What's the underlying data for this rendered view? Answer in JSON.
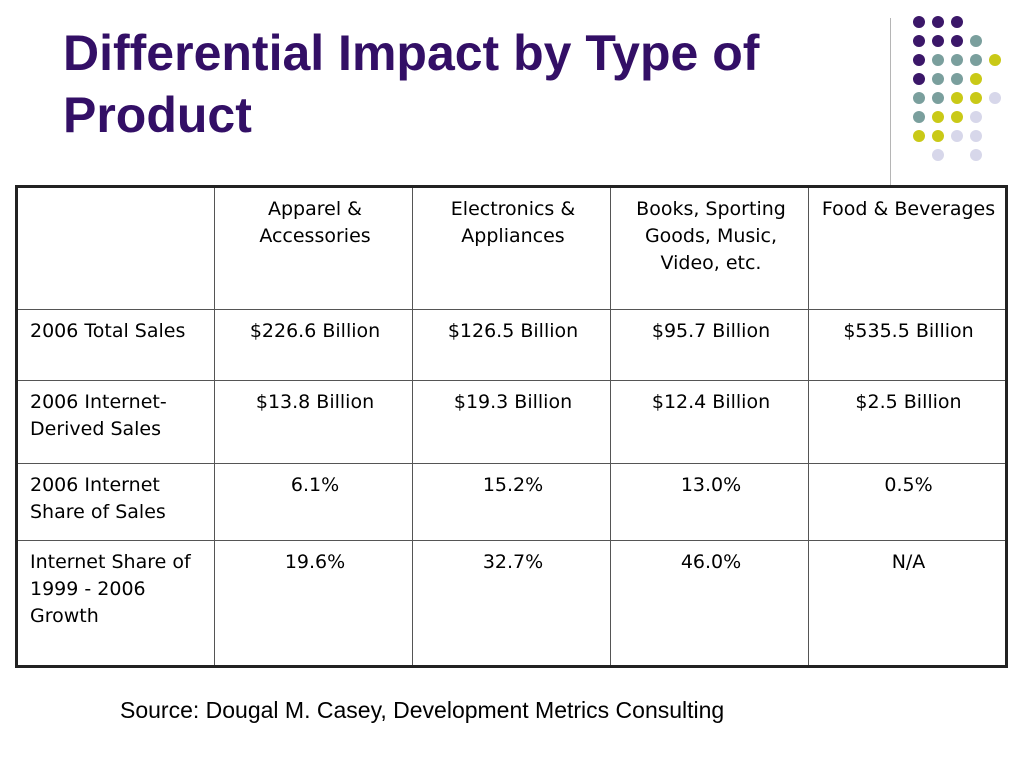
{
  "slide": {
    "title": "Differential Impact by Type of Product",
    "source": "Source: Dougal M. Casey, Development Metrics Consulting"
  },
  "decoration": {
    "colors": {
      "title": "#330f66",
      "purple": "#3b1769",
      "teal": "#7a9f9d",
      "yellow": "#c9c917",
      "lavender": "#d7d7ea"
    }
  },
  "table": {
    "headers": [
      "",
      "Apparel & Accessories",
      "Electronics & Appliances",
      "Books, Sporting Goods, Music, Video, etc.",
      "Food & Beverages"
    ],
    "rows": [
      [
        "2006 Total Sales",
        "$226.6 Billion",
        "$126.5 Billion",
        "$95.7 Billion",
        "$535.5 Billion"
      ],
      [
        "2006 Internet-Derived Sales",
        "$13.8 Billion",
        "$19.3 Billion",
        "$12.4 Billion",
        "$2.5 Billion"
      ],
      [
        "2006 Internet Share of Sales",
        "6.1%",
        "15.2%",
        "13.0%",
        "0.5%"
      ],
      [
        "Internet Share of 1999 - 2006 Growth",
        "19.6%",
        "32.7%",
        "46.0%",
        "N/A"
      ]
    ]
  }
}
